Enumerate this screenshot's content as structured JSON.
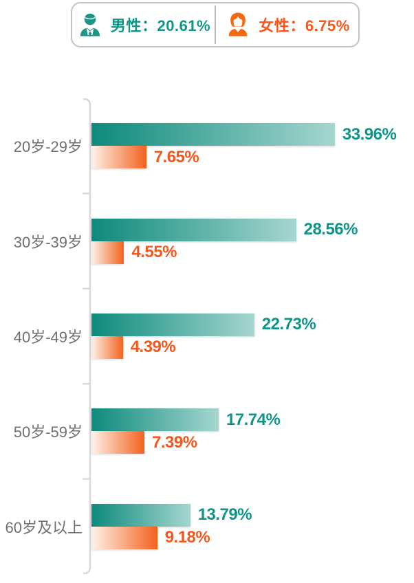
{
  "legend": {
    "male": {
      "label": "男性",
      "value": "20.61%"
    },
    "female": {
      "label": "女性",
      "value": "6.75%"
    },
    "separator": "："
  },
  "chart_data": {
    "type": "bar",
    "orientation": "horizontal",
    "title": "",
    "categories": [
      "20岁-29岁",
      "30岁-39岁",
      "40岁-49岁",
      "50岁-59岁",
      "60岁及以上"
    ],
    "series": [
      {
        "name": "男性",
        "values": [
          33.96,
          28.56,
          22.73,
          17.74,
          13.79
        ],
        "overall": "20.61%"
      },
      {
        "name": "女性",
        "values": [
          7.65,
          4.55,
          4.39,
          7.39,
          9.18
        ],
        "overall": "6.75%"
      }
    ],
    "value_suffix": "%",
    "xlim": [
      0,
      34
    ],
    "grid": false,
    "legend_position": "top",
    "value_labels": "outside-end"
  },
  "colors": {
    "male": "#0f9488",
    "male_gradient": [
      "#0d8a7c",
      "#a5d6cf"
    ],
    "female": "#f4581c",
    "female_gradient": [
      "#fdf2ea",
      "#f3621d"
    ],
    "category_label": "#6f6f6f",
    "axis": "#d9d9d9",
    "legend_border": "#c3c3c3"
  },
  "icons": {
    "male": "male-person-icon",
    "female": "female-person-icon"
  }
}
